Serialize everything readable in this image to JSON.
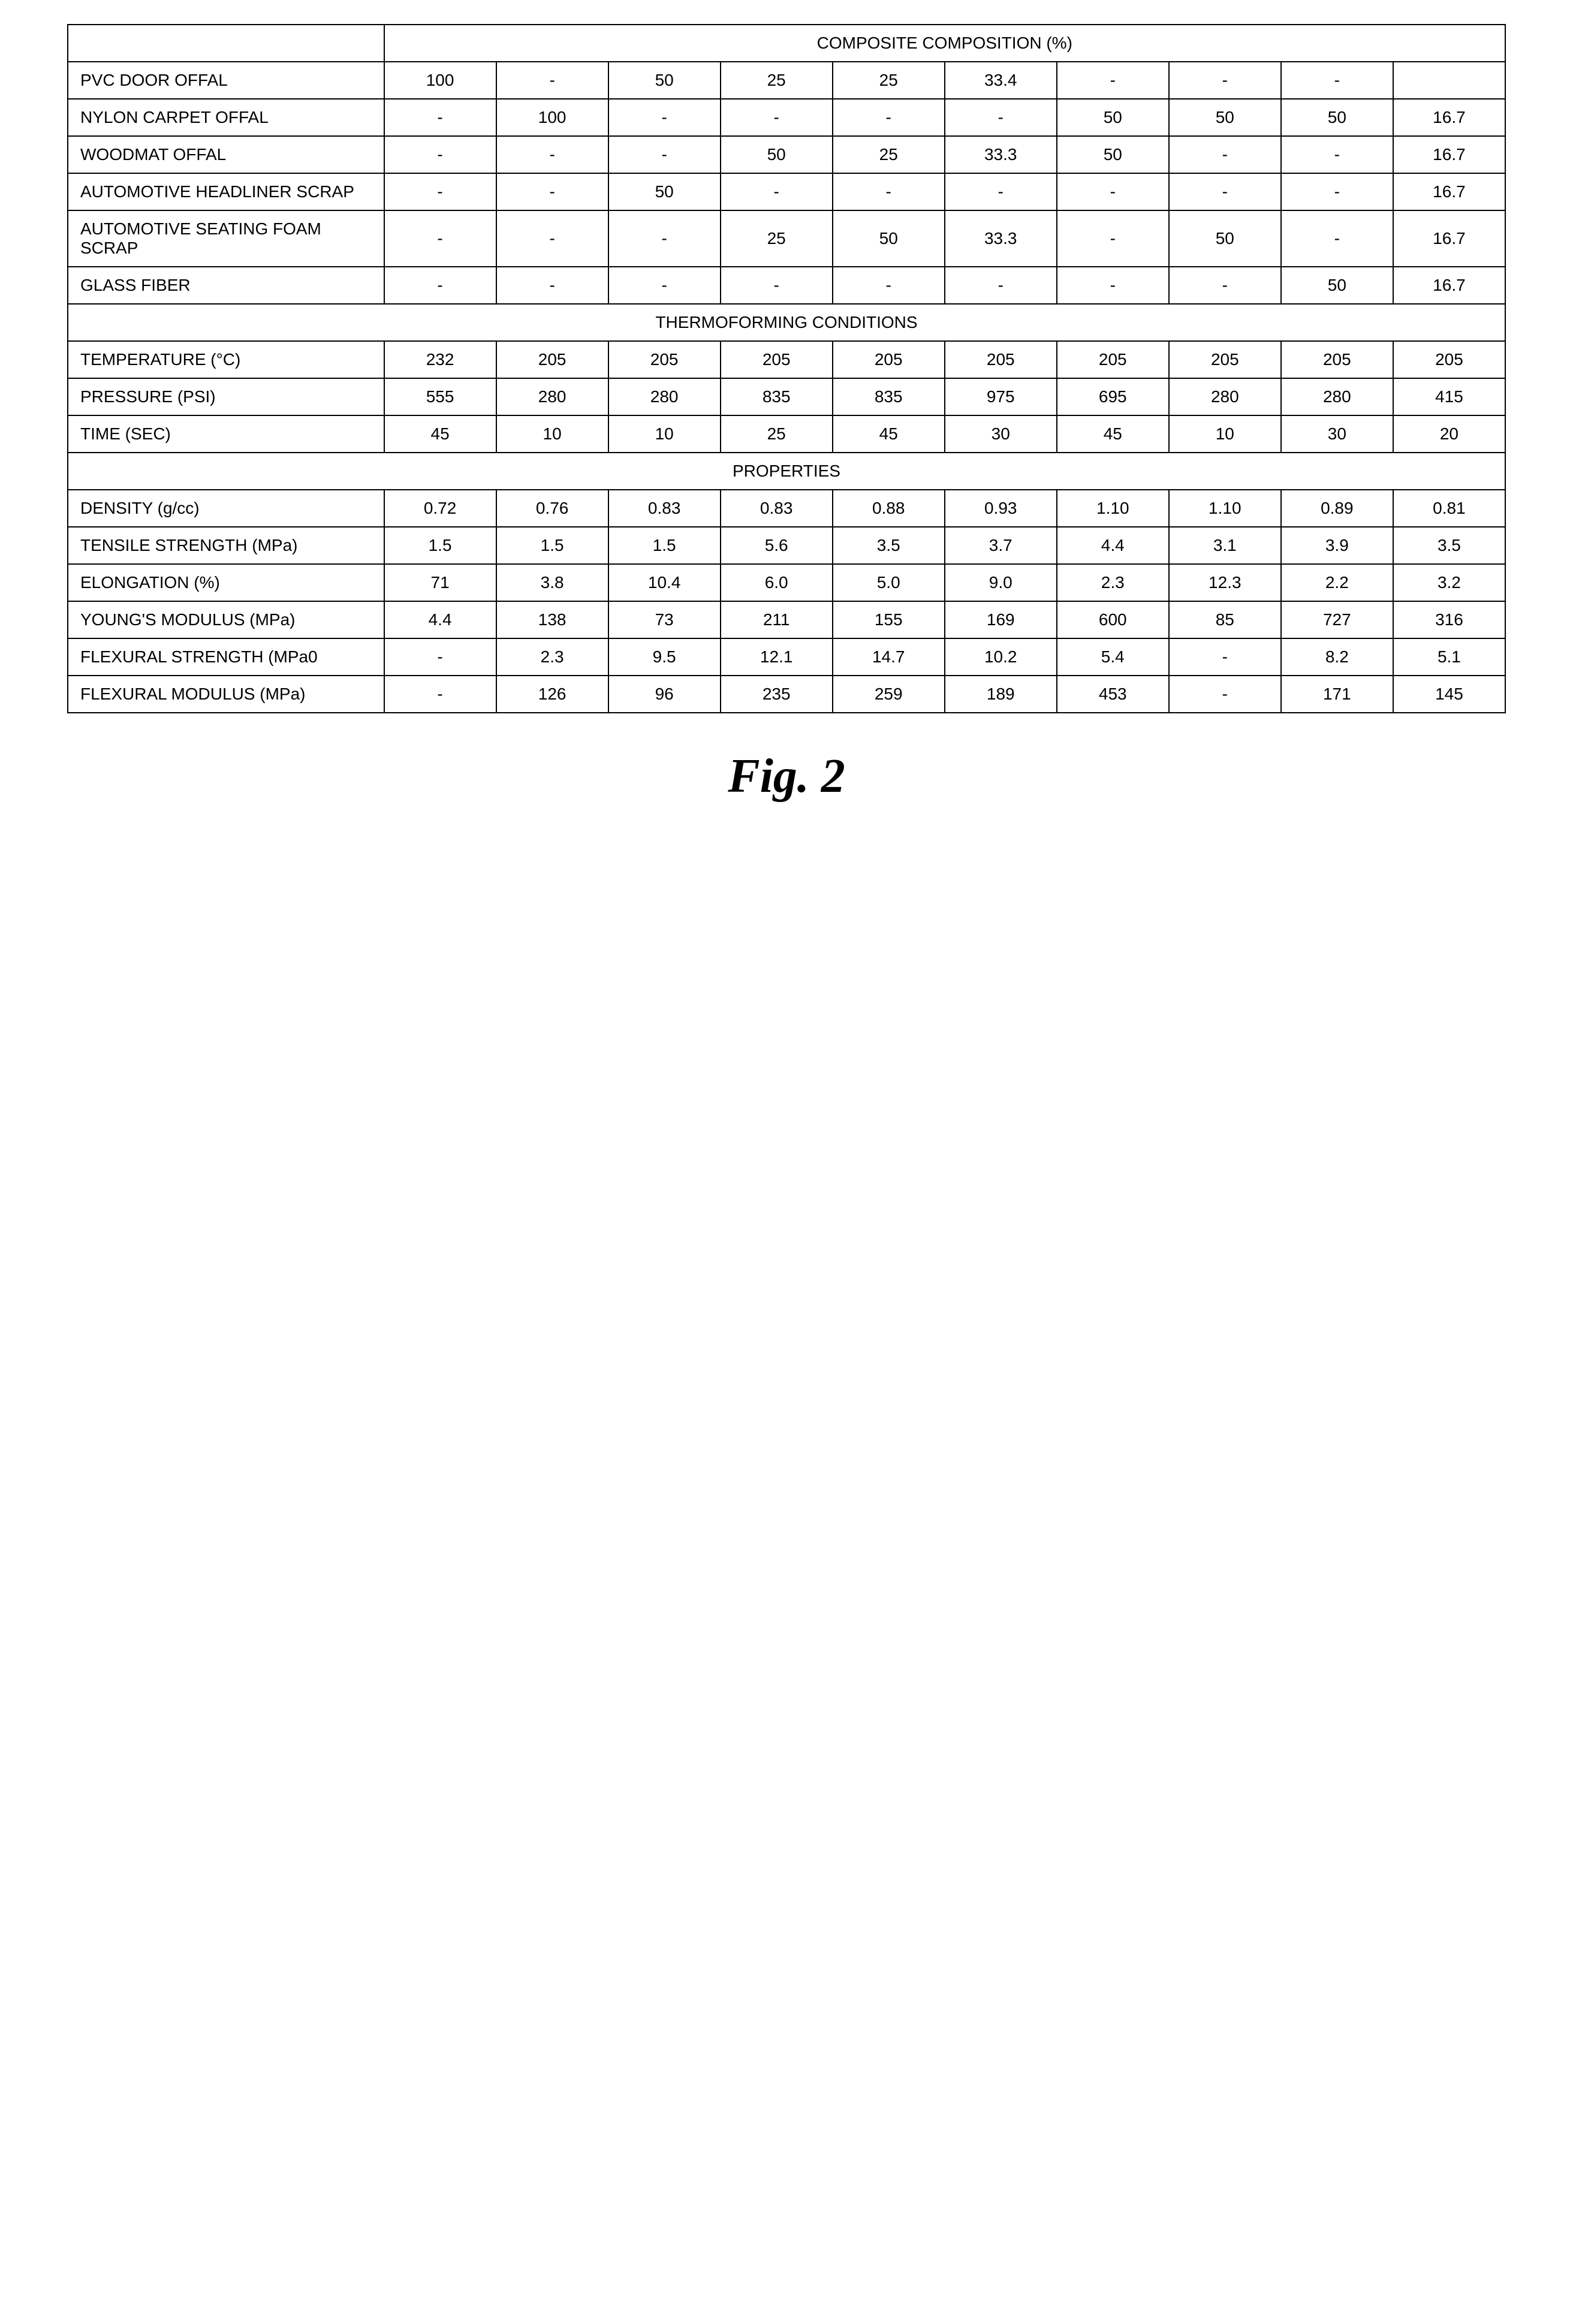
{
  "sections": {
    "composition": {
      "header": "COMPOSITE COMPOSITION (%)",
      "rows": [
        {
          "label": "PVC DOOR OFFAL",
          "values": [
            "100",
            "-",
            "50",
            "25",
            "25",
            "33.4",
            "-",
            "-",
            "-",
            ""
          ]
        },
        {
          "label": "NYLON CARPET OFFAL",
          "values": [
            "-",
            "100",
            "-",
            "-",
            "-",
            "-",
            "50",
            "50",
            "50",
            "16.7"
          ]
        },
        {
          "label": "WOODMAT OFFAL",
          "values": [
            "-",
            "-",
            "-",
            "50",
            "25",
            "33.3",
            "50",
            "-",
            "-",
            "16.7"
          ]
        },
        {
          "label": "AUTOMOTIVE HEADLINER SCRAP",
          "values": [
            "-",
            "-",
            "50",
            "-",
            "-",
            "-",
            "-",
            "-",
            "-",
            "16.7"
          ]
        },
        {
          "label": "AUTOMOTIVE SEATING FOAM SCRAP",
          "values": [
            "-",
            "-",
            "-",
            "25",
            "50",
            "33.3",
            "-",
            "50",
            "-",
            "16.7"
          ]
        },
        {
          "label": "GLASS FIBER",
          "values": [
            "-",
            "-",
            "-",
            "-",
            "-",
            "-",
            "-",
            "-",
            "50",
            "16.7"
          ]
        }
      ]
    },
    "thermoforming": {
      "header": "THERMOFORMING CONDITIONS",
      "rows": [
        {
          "label": "TEMPERATURE (°C)",
          "values": [
            "232",
            "205",
            "205",
            "205",
            "205",
            "205",
            "205",
            "205",
            "205",
            "205"
          ]
        },
        {
          "label": "PRESSURE (PSI)",
          "values": [
            "555",
            "280",
            "280",
            "835",
            "835",
            "975",
            "695",
            "280",
            "280",
            "415"
          ]
        },
        {
          "label": "TIME (SEC)",
          "values": [
            "45",
            "10",
            "10",
            "25",
            "45",
            "30",
            "45",
            "10",
            "30",
            "20"
          ]
        }
      ]
    },
    "properties": {
      "header": "PROPERTIES",
      "rows": [
        {
          "label": "DENSITY (g/cc)",
          "values": [
            "0.72",
            "0.76",
            "0.83",
            "0.83",
            "0.88",
            "0.93",
            "1.10",
            "1.10",
            "0.89",
            "0.81"
          ]
        },
        {
          "label": "TENSILE STRENGTH (MPa)",
          "values": [
            "1.5",
            "1.5",
            "1.5",
            "5.6",
            "3.5",
            "3.7",
            "4.4",
            "3.1",
            "3.9",
            "3.5"
          ]
        },
        {
          "label": "ELONGATION (%)",
          "values": [
            "71",
            "3.8",
            "10.4",
            "6.0",
            "5.0",
            "9.0",
            "2.3",
            "12.3",
            "2.2",
            "3.2"
          ]
        },
        {
          "label": "YOUNG'S MODULUS (MPa)",
          "values": [
            "4.4",
            "138",
            "73",
            "211",
            "155",
            "169",
            "600",
            "85",
            "727",
            "316"
          ]
        },
        {
          "label": "FLEXURAL STRENGTH (MPa0",
          "values": [
            "-",
            "2.3",
            "9.5",
            "12.1",
            "14.7",
            "10.2",
            "5.4",
            "-",
            "8.2",
            "5.1"
          ]
        },
        {
          "label": "FLEXURAL MODULUS (MPa)",
          "values": [
            "-",
            "126",
            "96",
            "235",
            "259",
            "189",
            "453",
            "-",
            "171",
            "145"
          ]
        }
      ]
    }
  },
  "caption": "Fig. 2",
  "columns_count": 10
}
